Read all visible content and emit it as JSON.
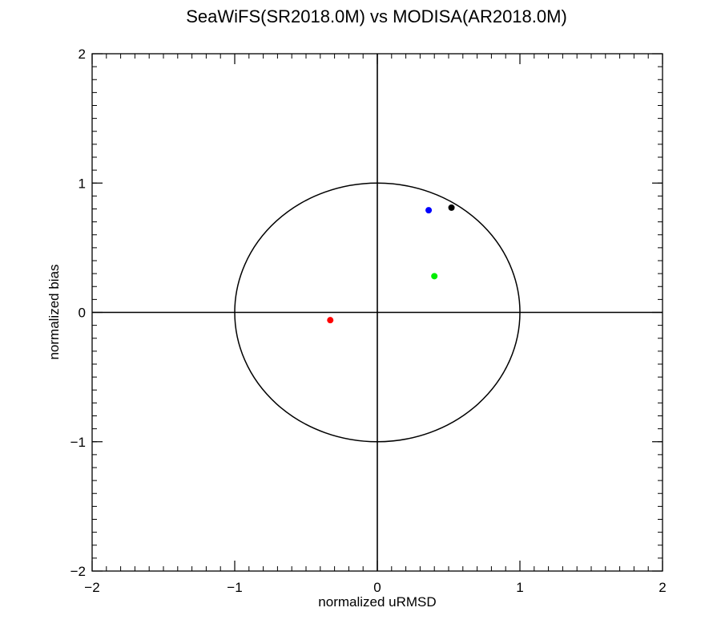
{
  "chart_data": {
    "type": "scatter",
    "title": "SeaWiFS(SR2018.0M) vs MODISA(AR2018.0M)",
    "xlabel": "normalized uRMSD",
    "ylabel": "normalized bias",
    "xlim": [
      -2,
      2
    ],
    "ylim": [
      -2,
      2
    ],
    "x_ticks": [
      -2,
      -1,
      0,
      1,
      2
    ],
    "y_ticks": [
      -2,
      -1,
      0,
      1,
      2
    ],
    "x_tick_labels": [
      "−2",
      "−1",
      "0",
      "1",
      "2"
    ],
    "y_tick_labels": [
      "−2",
      "−1",
      "0",
      "1",
      "2"
    ],
    "minor_ticks_per_major": 10,
    "reference_circle_radius": 1,
    "zero_lines": true,
    "grid": false,
    "points": [
      {
        "x": 0.52,
        "y": 0.81,
        "color": "#000000"
      },
      {
        "x": 0.36,
        "y": 0.79,
        "color": "#0000ff"
      },
      {
        "x": 0.4,
        "y": 0.28,
        "color": "#00ee00"
      },
      {
        "x": -0.33,
        "y": -0.06,
        "color": "#ff0000"
      }
    ]
  }
}
